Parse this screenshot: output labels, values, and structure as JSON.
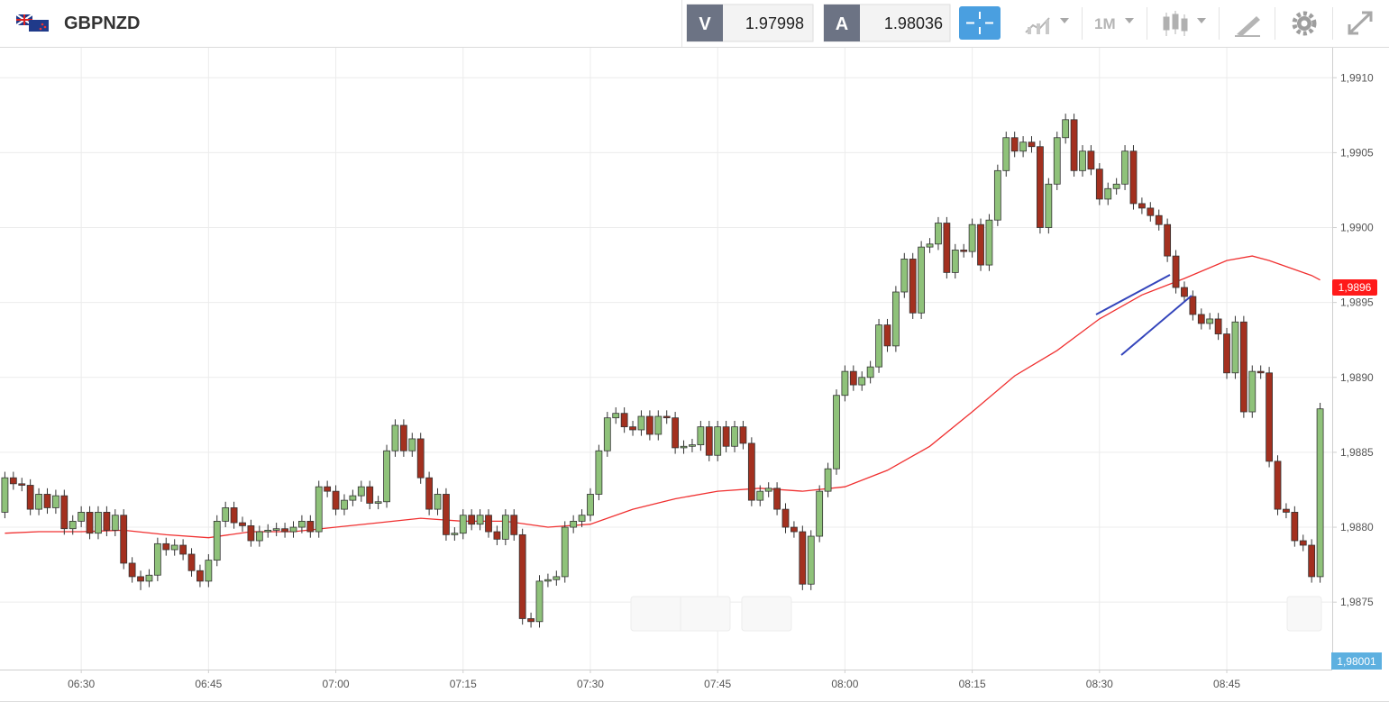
{
  "header": {
    "symbol": "GBPNZD",
    "bid_label": "V",
    "bid": "1.97998",
    "ask_label": "A",
    "ask": "1.98036",
    "timeframe": "1M"
  },
  "chart_data": {
    "type": "candlestick",
    "x": [
      "06:21",
      "06:22",
      "06:23",
      "06:24",
      "06:25",
      "06:26",
      "06:27",
      "06:28",
      "06:29",
      "06:30",
      "06:31",
      "06:32",
      "06:33",
      "06:34",
      "06:35",
      "06:36",
      "06:37",
      "06:38",
      "06:39",
      "06:40",
      "06:41",
      "06:42",
      "06:43",
      "06:44",
      "06:45",
      "06:46",
      "06:47",
      "06:48",
      "06:49",
      "06:50",
      "06:51",
      "06:52",
      "06:53",
      "06:54",
      "06:55",
      "06:56",
      "06:57",
      "06:58",
      "06:59",
      "07:00",
      "07:01",
      "07:02",
      "07:03",
      "07:04",
      "07:05",
      "07:06",
      "07:07",
      "07:08",
      "07:09",
      "07:10",
      "07:11",
      "07:12",
      "07:13",
      "07:14",
      "07:15",
      "07:16",
      "07:17",
      "07:18",
      "07:19",
      "07:20",
      "07:21",
      "07:22",
      "07:23",
      "07:24",
      "07:25",
      "07:26",
      "07:27",
      "07:28",
      "07:29",
      "07:30",
      "07:31",
      "07:32",
      "07:33",
      "07:34",
      "07:35",
      "07:36",
      "07:37",
      "07:38",
      "07:39",
      "07:40",
      "07:41",
      "07:42",
      "07:43",
      "07:44",
      "07:45",
      "07:46",
      "07:47",
      "07:48",
      "07:49",
      "07:50",
      "07:51",
      "07:52",
      "07:53",
      "07:54",
      "07:55",
      "07:56",
      "07:57",
      "07:58",
      "07:59",
      "08:00",
      "08:01",
      "08:02",
      "08:03",
      "08:04",
      "08:05",
      "08:06",
      "08:07",
      "08:08",
      "08:09",
      "08:10",
      "08:11",
      "08:12",
      "08:13",
      "08:14",
      "08:15",
      "08:16",
      "08:17",
      "08:18",
      "08:19",
      "08:20",
      "08:21",
      "08:22",
      "08:23",
      "08:24",
      "08:25",
      "08:26",
      "08:27",
      "08:28",
      "08:29",
      "08:30",
      "08:31",
      "08:32",
      "08:33",
      "08:34",
      "08:35",
      "08:36",
      "08:37",
      "08:38",
      "08:39",
      "08:40",
      "08:41",
      "08:42",
      "08:43",
      "08:44",
      "08:45",
      "08:46",
      "08:47",
      "08:48",
      "08:49",
      "08:50",
      "08:51",
      "08:52",
      "08:53",
      "08:54",
      "08:55",
      "08:56"
    ],
    "open": [
      1.9881,
      1.98833,
      1.98829,
      1.98828,
      1.98812,
      1.98822,
      1.98813,
      1.98821,
      1.98799,
      1.98804,
      1.9881,
      1.98796,
      1.9881,
      1.98798,
      1.98808,
      1.98776,
      1.98767,
      1.98764,
      1.98768,
      1.98789,
      1.98785,
      1.98788,
      1.98782,
      1.98771,
      1.98764,
      1.98778,
      1.98804,
      1.98813,
      1.98803,
      1.98801,
      1.98791,
      1.98797,
      1.98798,
      1.98799,
      1.98797,
      1.988,
      1.98804,
      1.98797,
      1.98827,
      1.98824,
      1.98812,
      1.98818,
      1.98821,
      1.98827,
      1.98816,
      1.98817,
      1.98851,
      1.98868,
      1.98851,
      1.98859,
      1.98833,
      1.98812,
      1.98822,
      1.98795,
      1.98796,
      1.98808,
      1.98802,
      1.98808,
      1.98797,
      1.98792,
      1.98808,
      1.98795,
      1.98739,
      1.98737,
      1.98764,
      1.98765,
      1.98767,
      1.988,
      1.98804,
      1.98808,
      1.98822,
      1.98851,
      1.98873,
      1.98876,
      1.98867,
      1.98865,
      1.98874,
      1.98862,
      1.98874,
      1.98873,
      1.98853,
      1.98854,
      1.98855,
      1.98867,
      1.98848,
      1.98867,
      1.98854,
      1.98867,
      1.98856,
      1.98818,
      1.98824,
      1.98826,
      1.98812,
      1.988,
      1.98797,
      1.98762,
      1.98794,
      1.98824,
      1.98839,
      1.98888,
      1.98904,
      1.98895,
      1.989,
      1.98907,
      1.98935,
      1.98921,
      1.98957,
      1.98979,
      1.98943,
      1.98987,
      1.98989,
      1.99003,
      1.9897,
      1.98985,
      1.98984,
      1.99002,
      1.98975,
      1.99005,
      1.99038,
      1.9906,
      1.99051,
      1.99057,
      1.99054,
      1.99,
      1.99029,
      1.9906,
      1.99072,
      1.99038,
      1.99051,
      1.99039,
      1.99019,
      1.99026,
      1.99029,
      1.99051,
      1.99016,
      1.99013,
      1.99008,
      1.99002,
      1.98981,
      1.9896,
      1.98954,
      1.98942,
      1.98936,
      1.98939,
      1.98929,
      1.98903,
      1.98937,
      1.98877,
      1.98904,
      1.98903,
      1.98844,
      1.98812,
      1.9881,
      1.98791,
      1.98788,
      1.98767
    ],
    "high": [
      1.98837,
      1.98837,
      1.98833,
      1.98832,
      1.98826,
      1.98826,
      1.98825,
      1.98825,
      1.98808,
      1.98814,
      1.98814,
      1.98814,
      1.98814,
      1.98812,
      1.98812,
      1.9878,
      1.98771,
      1.98772,
      1.98793,
      1.98793,
      1.98792,
      1.98792,
      1.98786,
      1.98775,
      1.98782,
      1.98808,
      1.98817,
      1.98817,
      1.98807,
      1.98805,
      1.98801,
      1.98802,
      1.98803,
      1.98803,
      1.98804,
      1.98808,
      1.98808,
      1.98831,
      1.98831,
      1.98828,
      1.98822,
      1.98825,
      1.98831,
      1.98831,
      1.98821,
      1.98855,
      1.98872,
      1.98872,
      1.98863,
      1.98863,
      1.98837,
      1.98826,
      1.98826,
      1.988,
      1.98812,
      1.98812,
      1.98812,
      1.98812,
      1.98801,
      1.98812,
      1.98812,
      1.98799,
      1.98743,
      1.98768,
      1.98769,
      1.98771,
      1.98804,
      1.98808,
      1.98812,
      1.98826,
      1.98855,
      1.98877,
      1.9888,
      1.9888,
      1.98871,
      1.98878,
      1.98878,
      1.98878,
      1.98878,
      1.98877,
      1.98858,
      1.98859,
      1.98871,
      1.98871,
      1.98871,
      1.98871,
      1.98871,
      1.98871,
      1.9886,
      1.98828,
      1.9883,
      1.9883,
      1.98816,
      1.98804,
      1.98801,
      1.98798,
      1.98828,
      1.98843,
      1.98892,
      1.98908,
      1.98908,
      1.98904,
      1.98911,
      1.98939,
      1.98939,
      1.98961,
      1.98983,
      1.98983,
      1.98991,
      1.98993,
      1.99007,
      1.99007,
      1.98989,
      1.98989,
      1.99006,
      1.99006,
      1.99009,
      1.99042,
      1.99064,
      1.99064,
      1.99061,
      1.99061,
      1.99058,
      1.99033,
      1.99064,
      1.99076,
      1.99076,
      1.99055,
      1.99055,
      1.99043,
      1.9903,
      1.99033,
      1.99055,
      1.99055,
      1.9902,
      1.99017,
      1.99012,
      1.99006,
      1.98985,
      1.98964,
      1.98958,
      1.98946,
      1.98943,
      1.98943,
      1.98933,
      1.98941,
      1.98941,
      1.98908,
      1.98908,
      1.98907,
      1.98848,
      1.98816,
      1.98814,
      1.98795,
      1.98792,
      1.98883
    ],
    "low": [
      1.98806,
      1.98825,
      1.98824,
      1.98808,
      1.98808,
      1.98809,
      1.98809,
      1.98795,
      1.98795,
      1.988,
      1.98792,
      1.98792,
      1.98794,
      1.98794,
      1.98772,
      1.98763,
      1.98758,
      1.9876,
      1.98764,
      1.98781,
      1.98781,
      1.98778,
      1.98767,
      1.9876,
      1.9876,
      1.98774,
      1.988,
      1.98799,
      1.98797,
      1.98787,
      1.98787,
      1.98793,
      1.98794,
      1.98793,
      1.98793,
      1.98796,
      1.98793,
      1.98793,
      1.9882,
      1.98808,
      1.98808,
      1.98814,
      1.98817,
      1.98812,
      1.98812,
      1.98813,
      1.98847,
      1.98847,
      1.98847,
      1.98829,
      1.98808,
      1.98808,
      1.98791,
      1.98791,
      1.98792,
      1.98798,
      1.98798,
      1.98793,
      1.98788,
      1.98788,
      1.98791,
      1.98735,
      1.98733,
      1.98733,
      1.9876,
      1.98761,
      1.98763,
      1.98796,
      1.988,
      1.98804,
      1.98818,
      1.98847,
      1.98869,
      1.98863,
      1.98861,
      1.98861,
      1.98858,
      1.98858,
      1.98869,
      1.98849,
      1.98849,
      1.9885,
      1.98851,
      1.98844,
      1.98844,
      1.9885,
      1.9885,
      1.98852,
      1.98814,
      1.98814,
      1.9882,
      1.98808,
      1.98796,
      1.98793,
      1.98758,
      1.98758,
      1.9879,
      1.9882,
      1.98835,
      1.98884,
      1.98891,
      1.98891,
      1.98896,
      1.98903,
      1.98917,
      1.98917,
      1.98953,
      1.98939,
      1.98939,
      1.98983,
      1.98985,
      1.98966,
      1.98966,
      1.9898,
      1.9898,
      1.98971,
      1.98971,
      1.99001,
      1.99034,
      1.99047,
      1.99047,
      1.9905,
      1.98996,
      1.98996,
      1.99025,
      1.99056,
      1.99034,
      1.99034,
      1.99035,
      1.99015,
      1.99015,
      1.99022,
      1.99025,
      1.99012,
      1.99009,
      1.99004,
      1.98998,
      1.98977,
      1.98956,
      1.9895,
      1.98938,
      1.98932,
      1.98932,
      1.98925,
      1.98899,
      1.98899,
      1.98873,
      1.98873,
      1.98899,
      1.9884,
      1.98808,
      1.98806,
      1.98787,
      1.98784,
      1.98763,
      1.98763
    ],
    "close": [
      1.98833,
      1.98829,
      1.98828,
      1.98812,
      1.98822,
      1.98813,
      1.98821,
      1.98799,
      1.98804,
      1.9881,
      1.98796,
      1.9881,
      1.98798,
      1.98808,
      1.98776,
      1.98767,
      1.98764,
      1.98768,
      1.98789,
      1.98785,
      1.98788,
      1.98782,
      1.98771,
      1.98764,
      1.98778,
      1.98804,
      1.98813,
      1.98803,
      1.98801,
      1.98791,
      1.98797,
      1.98798,
      1.98799,
      1.98797,
      1.988,
      1.98804,
      1.98797,
      1.98827,
      1.98824,
      1.98812,
      1.98818,
      1.98821,
      1.98827,
      1.98816,
      1.98817,
      1.98851,
      1.98868,
      1.98851,
      1.98859,
      1.98833,
      1.98812,
      1.98822,
      1.98795,
      1.98796,
      1.98808,
      1.98802,
      1.98808,
      1.98797,
      1.98792,
      1.98808,
      1.98795,
      1.98739,
      1.98737,
      1.98764,
      1.98765,
      1.98767,
      1.988,
      1.98804,
      1.98808,
      1.98822,
      1.98851,
      1.98873,
      1.98876,
      1.98867,
      1.98865,
      1.98874,
      1.98862,
      1.98874,
      1.98873,
      1.98853,
      1.98854,
      1.98855,
      1.98867,
      1.98848,
      1.98867,
      1.98854,
      1.98867,
      1.98856,
      1.98818,
      1.98824,
      1.98826,
      1.98812,
      1.988,
      1.98797,
      1.98762,
      1.98794,
      1.98824,
      1.98839,
      1.98888,
      1.98904,
      1.98895,
      1.989,
      1.98907,
      1.98935,
      1.98921,
      1.98957,
      1.98979,
      1.98943,
      1.98987,
      1.98989,
      1.99003,
      1.9897,
      1.98985,
      1.98984,
      1.99002,
      1.98975,
      1.99005,
      1.99038,
      1.9906,
      1.99051,
      1.99057,
      1.99054,
      1.99,
      1.99029,
      1.9906,
      1.99072,
      1.99038,
      1.99051,
      1.99039,
      1.99019,
      1.99026,
      1.99029,
      1.99051,
      1.99016,
      1.99013,
      1.99008,
      1.99002,
      1.98981,
      1.9896,
      1.98954,
      1.98942,
      1.98936,
      1.98939,
      1.98929,
      1.98903,
      1.98937,
      1.98877,
      1.98904,
      1.98903,
      1.98844,
      1.98812,
      1.9881,
      1.98791,
      1.98788,
      1.98767,
      1.98879
    ],
    "up_color": "#8fc27a",
    "down_color": "#a3301f",
    "xlim": [
      "06:20",
      "08:57"
    ],
    "xticks": [
      "06:30",
      "06:45",
      "07:00",
      "07:15",
      "07:30",
      "07:45",
      "08:00",
      "08:15",
      "08:30",
      "08:45"
    ],
    "ylim": [
      1.98705,
      1.9912
    ],
    "yticks": [
      {
        "value": 1.9875,
        "label": "1,9875"
      },
      {
        "value": 1.988,
        "label": "1,9880"
      },
      {
        "value": 1.9885,
        "label": "1,9885"
      },
      {
        "value": 1.989,
        "label": "1,9890"
      },
      {
        "value": 1.9895,
        "label": "1,9895"
      },
      {
        "value": 1.99,
        "label": "1,9900"
      },
      {
        "value": 1.9905,
        "label": "1,9905"
      },
      {
        "value": 1.991,
        "label": "1,9910"
      }
    ],
    "grid": true,
    "moving_average": {
      "color": "#f03030",
      "x": [
        "06:21",
        "06:25",
        "06:30",
        "06:35",
        "06:40",
        "06:45",
        "06:50",
        "06:55",
        "07:00",
        "07:05",
        "07:10",
        "07:15",
        "07:20",
        "07:25",
        "07:30",
        "07:35",
        "07:40",
        "07:45",
        "07:50",
        "07:55",
        "08:00",
        "08:05",
        "08:10",
        "08:15",
        "08:20",
        "08:25",
        "08:30",
        "08:35",
        "08:40",
        "08:45",
        "08:48",
        "08:50",
        "08:55",
        "08:56"
      ],
      "values": [
        1.98796,
        1.98797,
        1.98797,
        1.98798,
        1.98795,
        1.98793,
        1.98797,
        1.98797,
        1.988,
        1.98803,
        1.98806,
        1.98804,
        1.98804,
        1.988,
        1.98802,
        1.98812,
        1.98819,
        1.98824,
        1.98826,
        1.98824,
        1.98827,
        1.98838,
        1.98854,
        1.98877,
        1.98901,
        1.98918,
        1.98939,
        1.98955,
        1.98966,
        1.98978,
        1.98981,
        1.98978,
        1.98968,
        1.98965
      ]
    },
    "ma_tag": {
      "value": 1.9896,
      "label": "1,9896"
    },
    "price_tag": "1,98001"
  }
}
